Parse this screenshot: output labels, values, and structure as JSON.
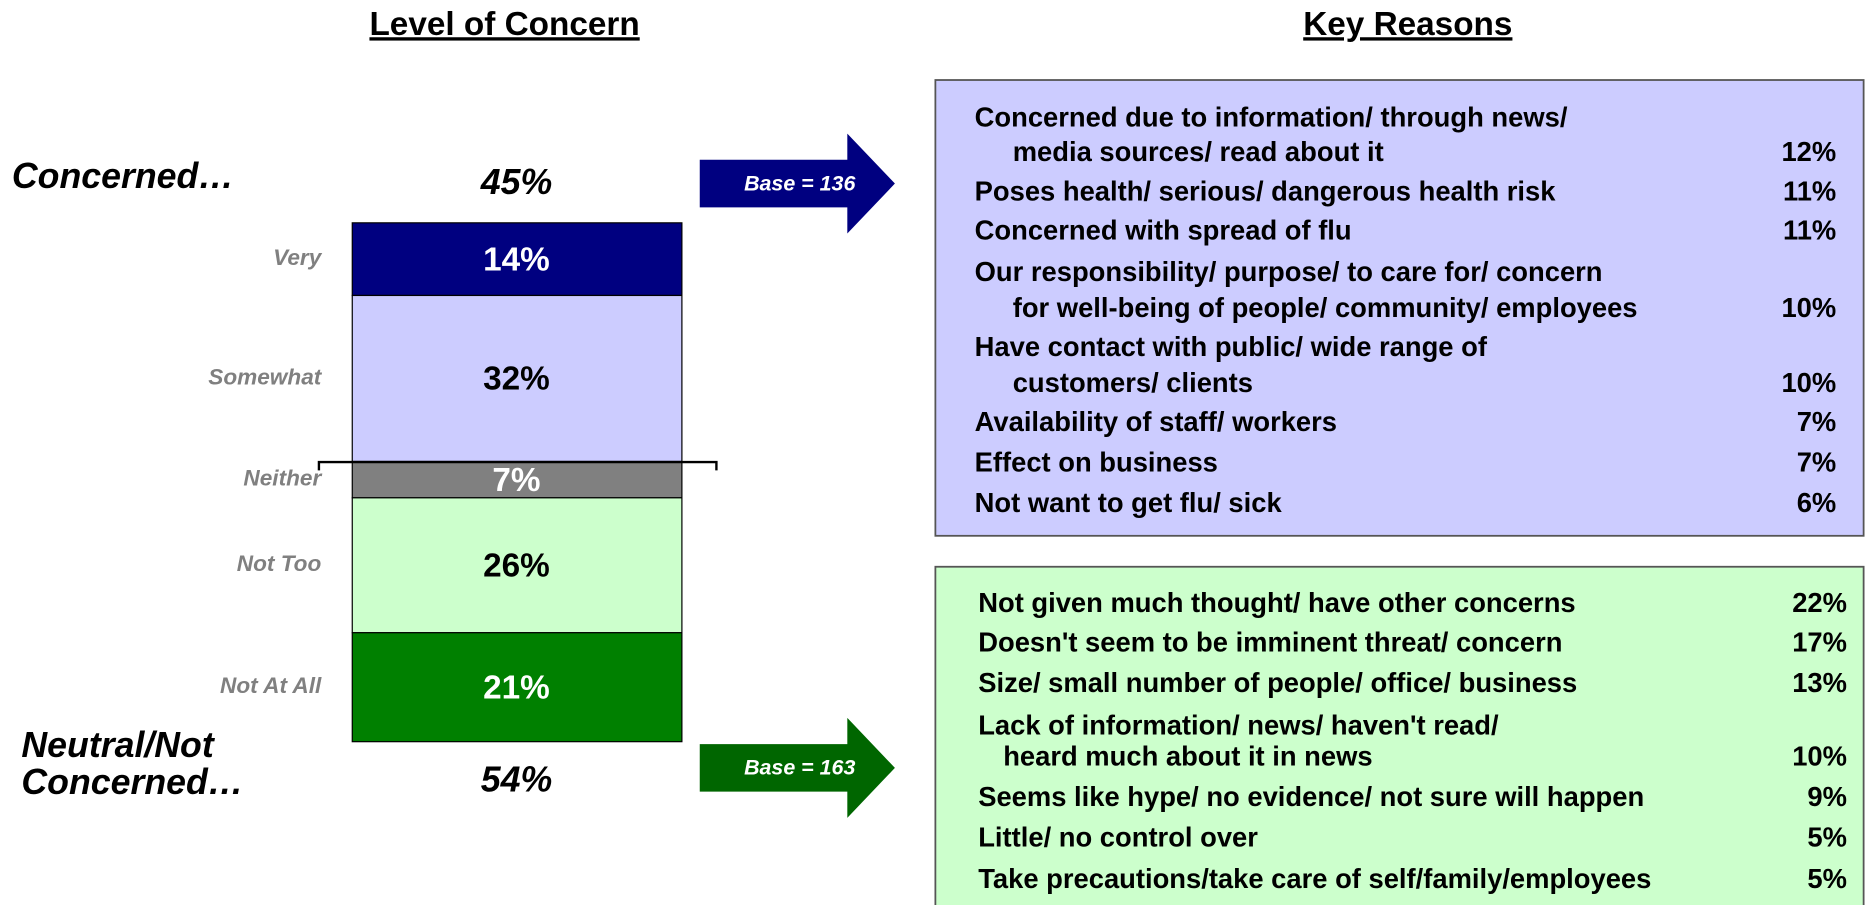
{
  "chart_data": {
    "type": "bar",
    "stacked": true,
    "title": "Level of Concern",
    "categories": [
      "Very",
      "Somewhat",
      "Neither",
      "Not Too",
      "Not At All"
    ],
    "values": [
      14,
      32,
      7,
      26,
      21
    ],
    "value_labels": [
      "14%",
      "32%",
      "7%",
      "26%",
      "21%"
    ],
    "colors": [
      "#000080",
      "#ccccff",
      "#808080",
      "#ccffcc",
      "#008000"
    ],
    "label_colors": [
      "#ffffff",
      "#000000",
      "#ffffff",
      "#000000",
      "#ffffff"
    ],
    "ylim": [
      0,
      100
    ],
    "groups": [
      {
        "label": [
          "Concerned…"
        ],
        "value_label": "45%",
        "base": "Base = 136",
        "color": "#000080"
      },
      {
        "label": [
          "Neutral/Not",
          "Concerned…"
        ],
        "value_label": "54%",
        "base": "Base = 163",
        "color": "#006600"
      }
    ]
  },
  "key_reasons": {
    "title": "Key Reasons",
    "concerned": [
      {
        "lines": [
          "Concerned due to information/ through news/",
          "media sources/ read about it"
        ],
        "pct": "12%"
      },
      {
        "lines": [
          "Poses health/ serious/ dangerous health risk"
        ],
        "pct": "11%"
      },
      {
        "lines": [
          "Concerned with spread of flu"
        ],
        "pct": "11%"
      },
      {
        "lines": [
          "Our responsibility/ purpose/ to care for/ concern",
          "for well-being of people/ community/ employees"
        ],
        "pct": "10%"
      },
      {
        "lines": [
          "Have contact with public/ wide range of",
          "customers/ clients"
        ],
        "pct": "10%"
      },
      {
        "lines": [
          "Availability of staff/ workers"
        ],
        "pct": "7%"
      },
      {
        "lines": [
          "Effect on business"
        ],
        "pct": "7%"
      },
      {
        "lines": [
          "Not want to get flu/ sick"
        ],
        "pct": "6%"
      }
    ],
    "not_concerned": [
      {
        "lines": [
          "Not given much thought/ have other concerns"
        ],
        "pct": "22%"
      },
      {
        "lines": [
          "Doesn't seem to be imminent threat/ concern"
        ],
        "pct": "17%"
      },
      {
        "lines": [
          "Size/ small number of people/ office/ business"
        ],
        "pct": "13%"
      },
      {
        "lines": [
          "Lack of information/ news/ haven't read/",
          "heard much about it in news"
        ],
        "pct": "10%"
      },
      {
        "lines": [
          "Seems like hype/ no evidence/ not sure will happen"
        ],
        "pct": "9%"
      },
      {
        "lines": [
          "Little/ no control over"
        ],
        "pct": "5%"
      },
      {
        "lines": [
          "Take precautions/take care of self/family/employees"
        ],
        "pct": "5%"
      }
    ]
  }
}
